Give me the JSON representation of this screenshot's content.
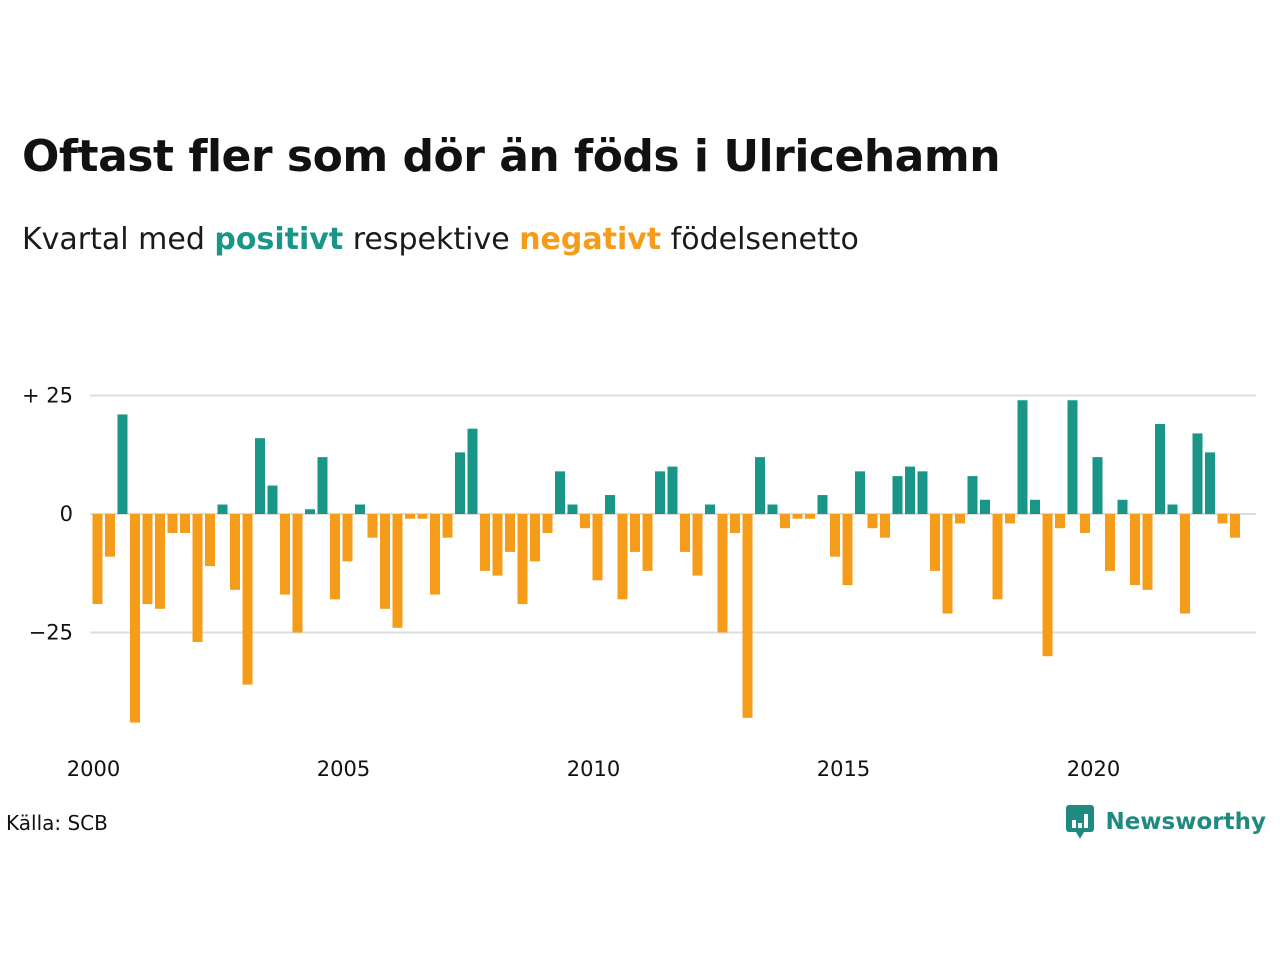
{
  "header": {
    "title": "Oftast fler som dör än föds i Ulricehamn",
    "subtitle_prefix": "Kvartal med ",
    "subtitle_positive": "positivt",
    "subtitle_middle": " respektive ",
    "subtitle_negative": "negativt",
    "subtitle_suffix": " födelsenetto"
  },
  "footer": {
    "source": "Källa: SCB",
    "brand": "Newsworthy",
    "brand_icon": "newsworthy-logo-icon"
  },
  "colors": {
    "positive": "#1a9688",
    "negative": "#f59c1a",
    "grid": "#dddddd",
    "brand": "#1f8a80"
  },
  "chart_data": {
    "type": "bar",
    "x_unit": "quarter",
    "x_start": "2000 Q1",
    "x_tick_labels": [
      "2000",
      "2005",
      "2010",
      "2015",
      "2020"
    ],
    "y_ticks": [
      {
        "value": 25,
        "label": "+ 25"
      },
      {
        "value": 0,
        "label": "0"
      },
      {
        "value": -25,
        "label": "−25"
      }
    ],
    "ylim": [
      -44,
      25
    ],
    "grid": true,
    "values": [
      -19,
      -9,
      21,
      -44,
      -19,
      -20,
      -4,
      -4,
      -27,
      -11,
      2,
      -16,
      -36,
      16,
      6,
      -17,
      -25,
      1,
      12,
      -18,
      -10,
      2,
      -5,
      -20,
      -24,
      -1,
      -1,
      -17,
      -5,
      13,
      18,
      -12,
      -13,
      -8,
      -19,
      -10,
      -4,
      9,
      2,
      -3,
      -14,
      4,
      -18,
      -8,
      -12,
      9,
      10,
      -8,
      -13,
      2,
      -25,
      -4,
      -43,
      12,
      2,
      -3,
      -1,
      -1,
      4,
      -9,
      -15,
      9,
      -3,
      -5,
      8,
      10,
      9,
      -12,
      -21,
      -2,
      8,
      3,
      -18,
      -2,
      24,
      3,
      -30,
      -3,
      24,
      -4,
      12,
      -12,
      3,
      -15,
      -16,
      19,
      2,
      -21,
      17,
      13,
      -2,
      -5
    ]
  }
}
